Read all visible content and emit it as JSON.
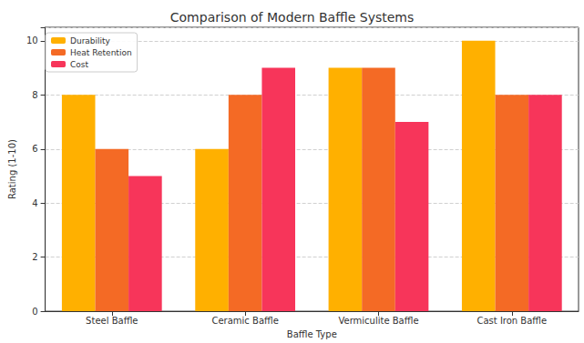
{
  "chart_data": {
    "type": "bar",
    "title": "Comparison of Modern Baffle Systems",
    "x_label": "Baffle Type",
    "y_label": "Rating (1-10)",
    "categories": [
      "Steel Baffle",
      "Ceramic Baffle",
      "Vermiculite Baffle",
      "Cast Iron Baffle"
    ],
    "series": [
      {
        "name": "Durability",
        "color": "#ffb000",
        "values": [
          8,
          6,
          9,
          10
        ]
      },
      {
        "name": "Heat Retention",
        "color": "#f46a25",
        "values": [
          6,
          8,
          9,
          8
        ]
      },
      {
        "name": "Cost",
        "color": "#f7355a",
        "values": [
          5,
          9,
          7,
          8
        ]
      }
    ],
    "ylim": [
      0,
      10.5
    ],
    "yticks": [
      0,
      2,
      4,
      6,
      8,
      10
    ],
    "grid": true,
    "legend": "upper left"
  }
}
